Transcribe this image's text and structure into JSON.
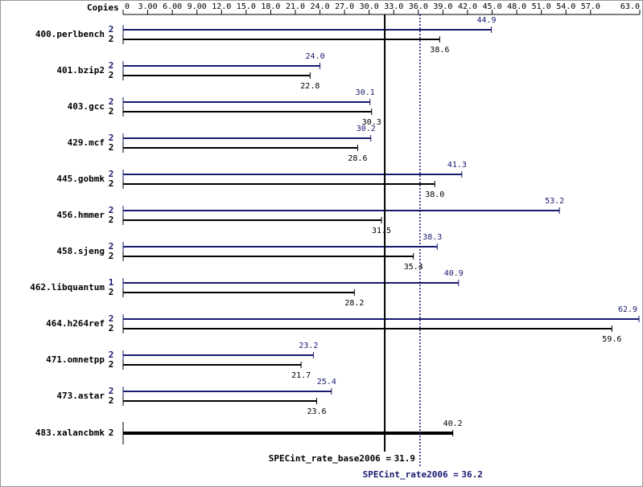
{
  "chart_data": {
    "type": "bar",
    "orientation": "horizontal",
    "axis_label": "Copies",
    "categories": [
      "400.perlbench",
      "401.bzip2",
      "403.gcc",
      "429.mcf",
      "445.gobmk",
      "456.hmmer",
      "458.sjeng",
      "462.libquantum",
      "464.h264ref",
      "471.omnetpp",
      "473.astar",
      "483.xalancbmk"
    ],
    "xlim": [
      0,
      63
    ],
    "xticks": [
      0,
      {
        "value": 3,
        "label": "3.00"
      },
      {
        "value": 6,
        "label": "6.00"
      },
      {
        "value": 9,
        "label": "9.00"
      },
      {
        "value": 12,
        "label": "12.0"
      },
      {
        "value": 15,
        "label": "15.0"
      },
      {
        "value": 18,
        "label": "18.0"
      },
      {
        "value": 21,
        "label": "21.0"
      },
      {
        "value": 24,
        "label": "24.0"
      },
      {
        "value": 27,
        "label": "27.0"
      },
      {
        "value": 30,
        "label": "30.0"
      },
      {
        "value": 33,
        "label": "33.0"
      },
      {
        "value": 36,
        "label": "36.0"
      },
      {
        "value": 39,
        "label": "39.0"
      },
      {
        "value": 42,
        "label": "42.0"
      },
      {
        "value": 45,
        "label": "45.0"
      },
      {
        "value": 48,
        "label": "48.0"
      },
      {
        "value": 51,
        "label": "51.0"
      },
      {
        "value": 54,
        "label": "54.0"
      },
      {
        "value": 57,
        "label": "57.0"
      },
      {
        "value": 63,
        "label": "63.0"
      }
    ],
    "series": [
      {
        "color": "#191970",
        "copies": [
          2,
          2,
          2,
          2,
          2,
          2,
          2,
          1,
          2,
          2,
          2,
          null
        ],
        "values": [
          44.9,
          24.0,
          30.1,
          30.2,
          41.3,
          53.2,
          38.3,
          40.9,
          62.9,
          23.2,
          25.4,
          null
        ],
        "value_labels": [
          "44.9",
          "24.0",
          "30.1",
          "30.2",
          "41.3",
          "53.2",
          "38.3",
          "40.9",
          "62.9",
          "23.2",
          "25.4",
          null
        ]
      },
      {
        "color": "#000000",
        "copies": [
          2,
          2,
          2,
          2,
          2,
          2,
          2,
          2,
          2,
          2,
          2,
          2
        ],
        "values": [
          38.6,
          22.8,
          30.3,
          28.6,
          38.0,
          31.5,
          35.4,
          28.2,
          59.6,
          21.7,
          23.6,
          40.2
        ],
        "value_labels": [
          "38.6",
          "22.8",
          "30.3",
          "28.6",
          "38.0",
          "31.5",
          "35.4",
          "28.2",
          "59.6",
          "21.7",
          "23.6",
          "40.2"
        ]
      }
    ],
    "reference_lines": [
      {
        "label": "SPECint_rate_base2006 =",
        "value": 31.9,
        "color": "#000000",
        "style": "solid"
      },
      {
        "label": "SPECint_rate2006 =",
        "value": 36.2,
        "color": "#191970",
        "style": "dotted"
      }
    ]
  }
}
